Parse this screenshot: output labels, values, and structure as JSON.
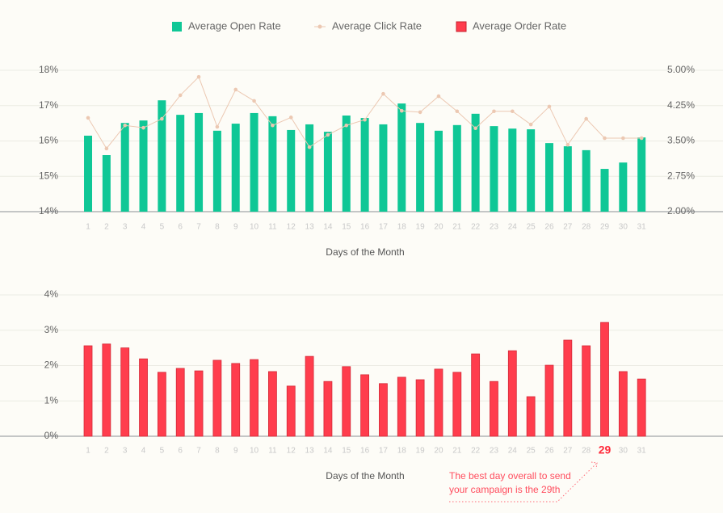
{
  "chart_data": [
    {
      "type": "bar",
      "x_label": "Days of the Month",
      "categories": [
        "1",
        "2",
        "3",
        "4",
        "5",
        "6",
        "7",
        "8",
        "9",
        "10",
        "11",
        "12",
        "13",
        "14",
        "15",
        "16",
        "17",
        "18",
        "19",
        "20",
        "21",
        "22",
        "23",
        "24",
        "25",
        "26",
        "27",
        "28",
        "29",
        "30",
        "31"
      ],
      "series": [
        {
          "name": "Average Open Rate",
          "color": "#0fc796",
          "type": "bar",
          "values": [
            16.15,
            15.6,
            16.51,
            16.58,
            17.15,
            16.74,
            16.79,
            16.29,
            16.49,
            16.79,
            16.7,
            16.31,
            16.47,
            16.26,
            16.72,
            16.65,
            16.47,
            17.06,
            16.51,
            16.29,
            16.45,
            16.77,
            16.42,
            16.35,
            16.33,
            15.94,
            15.85,
            15.74,
            15.21,
            15.39,
            16.1
          ]
        },
        {
          "name": "Average Click Rate",
          "color": "#ecc8b2",
          "type": "line",
          "axis": "y2",
          "values": [
            3.99,
            3.34,
            3.83,
            3.78,
            3.97,
            4.47,
            4.86,
            3.8,
            4.59,
            4.35,
            3.83,
            4.0,
            3.37,
            3.63,
            3.83,
            3.95,
            4.5,
            4.14,
            4.11,
            4.45,
            4.13,
            3.77,
            4.13,
            4.13,
            3.85,
            4.23,
            3.42,
            3.97,
            3.56,
            3.56,
            3.56
          ]
        }
      ],
      "ylim": [
        14,
        18
      ],
      "yticks": [
        {
          "value": 14,
          "label": "14%"
        },
        {
          "value": 15,
          "label": "15%"
        },
        {
          "value": 16,
          "label": "16%"
        },
        {
          "value": 17,
          "label": "17%"
        },
        {
          "value": 18,
          "label": "18%"
        }
      ],
      "y2lim": [
        2,
        5
      ],
      "y2ticks": [
        {
          "value": 2,
          "label": "2.00%"
        },
        {
          "value": 2.75,
          "label": "2.75%"
        },
        {
          "value": 3.5,
          "label": "3.50%"
        },
        {
          "value": 4.25,
          "label": "4.25%"
        },
        {
          "value": 5,
          "label": "5.00%"
        }
      ],
      "grid": true
    },
    {
      "type": "bar",
      "x_label": "Days of the Month",
      "categories": [
        "1",
        "2",
        "3",
        "4",
        "5",
        "6",
        "7",
        "8",
        "9",
        "10",
        "11",
        "12",
        "13",
        "14",
        "15",
        "16",
        "17",
        "18",
        "19",
        "20",
        "21",
        "22",
        "23",
        "24",
        "25",
        "26",
        "27",
        "28",
        "29",
        "30",
        "31"
      ],
      "series": [
        {
          "name": "Average Order Rate",
          "color": "#ff3d4d",
          "type": "bar",
          "values": [
            2.56,
            2.61,
            2.5,
            2.19,
            1.81,
            1.92,
            1.85,
            2.15,
            2.06,
            2.17,
            1.83,
            1.42,
            2.26,
            1.55,
            1.97,
            1.74,
            1.49,
            1.67,
            1.6,
            1.9,
            1.81,
            2.33,
            1.55,
            2.42,
            1.12,
            2.01,
            2.72,
            2.56,
            3.22,
            1.83,
            1.62
          ]
        }
      ],
      "ylim": [
        0,
        4
      ],
      "yticks": [
        {
          "value": 0,
          "label": "0%"
        },
        {
          "value": 1,
          "label": "1%"
        },
        {
          "value": 2,
          "label": "2%"
        },
        {
          "value": 3,
          "label": "3%"
        },
        {
          "value": 4,
          "label": "4%"
        }
      ],
      "grid": true,
      "highlight": "29",
      "annotation": [
        "The best day overall to send",
        "your campaign is the 29th"
      ]
    }
  ]
}
